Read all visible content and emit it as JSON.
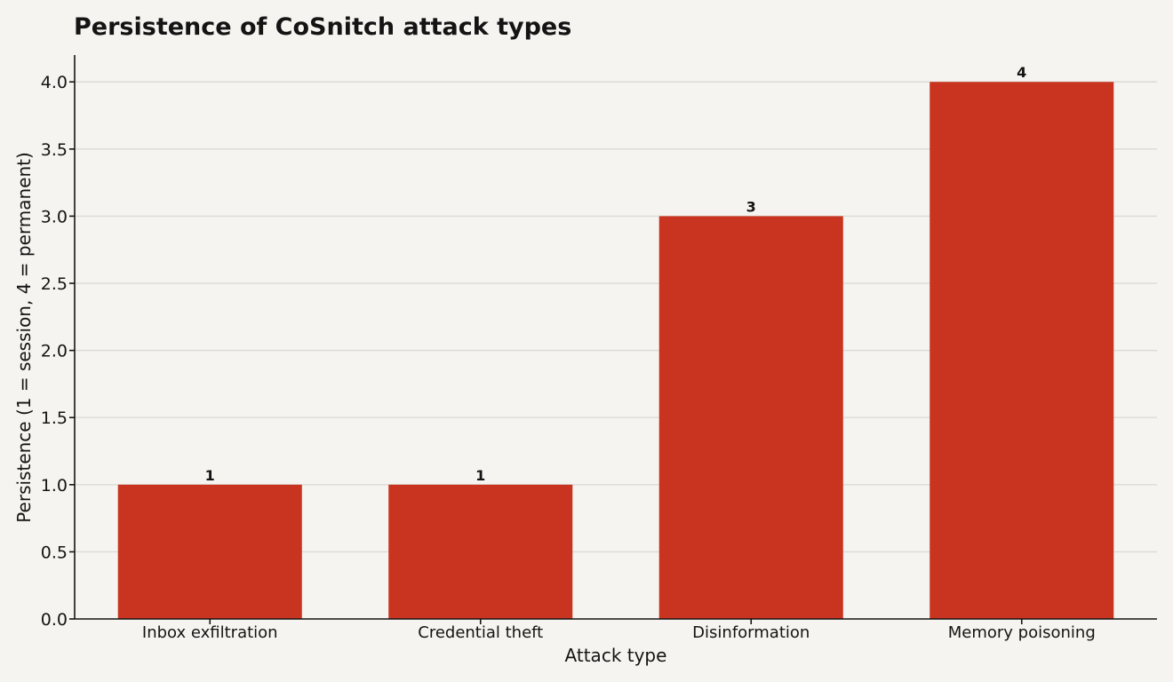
{
  "chart_data": {
    "type": "bar",
    "title": "Persistence of CoSnitch attack types",
    "xlabel": "Attack type",
    "ylabel": "Persistence (1 = session, 4 = permanent)",
    "categories": [
      "Inbox exfiltration",
      "Credential theft",
      "Disinformation",
      "Memory poisoning"
    ],
    "values": [
      1,
      1,
      3,
      4
    ],
    "data_labels": [
      "1",
      "1",
      "3",
      "4"
    ],
    "ylim": [
      0,
      4.2
    ],
    "yticks": [
      0,
      0.5,
      1,
      1.5,
      2,
      2.5,
      3,
      3.5,
      4
    ],
    "ytick_labels": [
      "0.0",
      "0.5",
      "1.0",
      "1.5",
      "2.0",
      "2.5",
      "3.0",
      "3.5",
      "4.0"
    ],
    "grid": true,
    "legend": "none",
    "colors": {
      "bar": "#c93420",
      "background": "#f5f4f0"
    }
  }
}
